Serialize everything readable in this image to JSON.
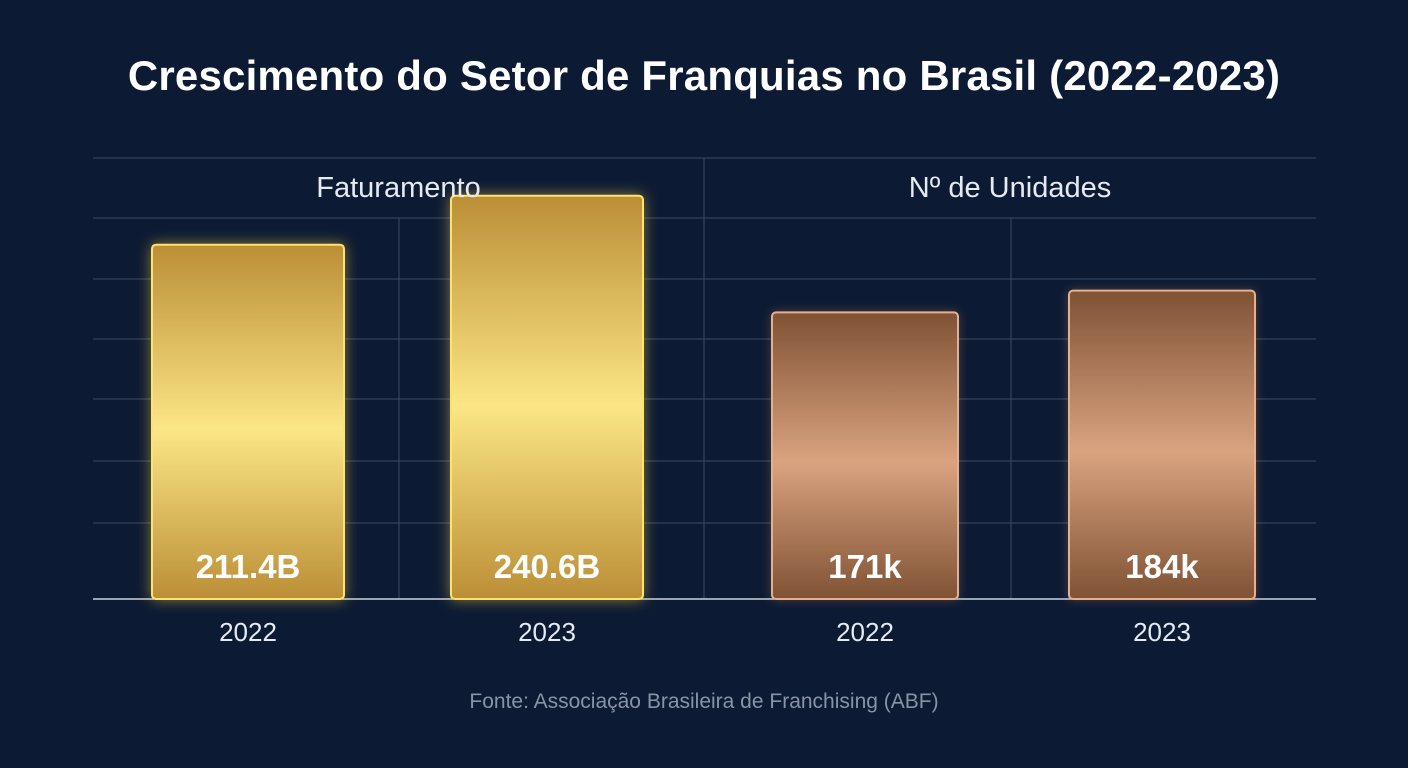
{
  "title": "Crescimento do Setor de Franquias no Brasil (2022-2023)",
  "source": "Fonte: Associação Brasileira de Franchising (ABF)",
  "colors": {
    "background": "#0c1a33",
    "gold_dark": "#bb8e36",
    "gold_light": "#fbe685",
    "gold_border": "#ffe36a",
    "copper_dark": "#7f5234",
    "copper_light": "#daa380",
    "copper_border": "#e6b08c",
    "grid": "#3c4b66"
  },
  "chart_data": [
    {
      "type": "bar",
      "panel": "Faturamento",
      "categories": [
        "2022",
        "2023"
      ],
      "values": [
        211.4,
        240.6
      ],
      "labels": [
        "211.4B",
        "240.6B"
      ],
      "ylim": [
        0,
        250
      ],
      "color": "gold",
      "grid": true
    },
    {
      "type": "bar",
      "panel": "Nº de Unidades",
      "categories": [
        "2022",
        "2023"
      ],
      "values": [
        171,
        184
      ],
      "labels": [
        "171k",
        "184k"
      ],
      "ylim": [
        0,
        250
      ],
      "color": "copper",
      "grid": true
    }
  ]
}
